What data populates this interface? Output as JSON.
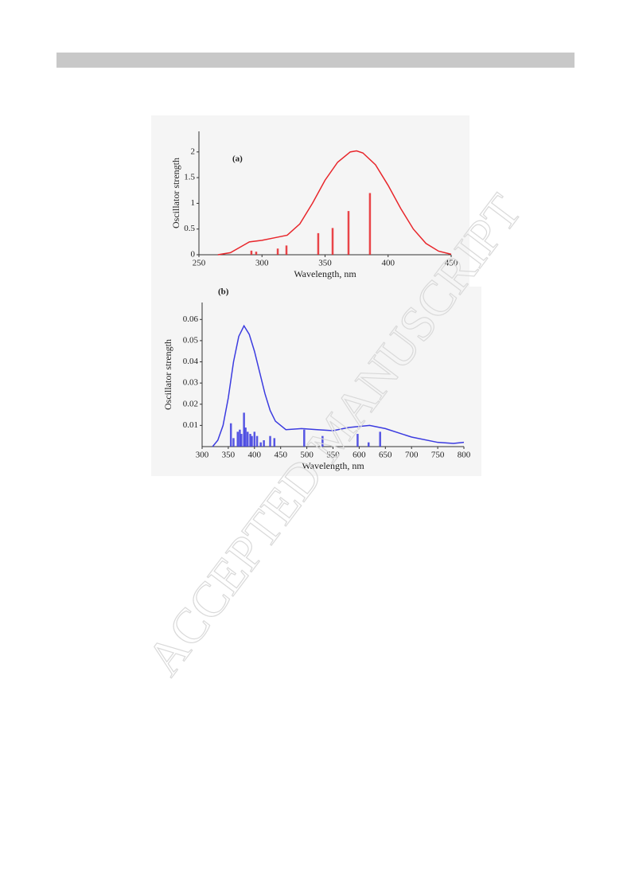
{
  "watermark": "ACCEPTED MANUSCRIPT",
  "chart_data": [
    {
      "type": "line",
      "annotation": "(a)",
      "x_label": "Wavelength, nm",
      "y_label": "Oscillator strength",
      "color": "#e8262b",
      "xlim": [
        250,
        450
      ],
      "xticks": [
        250,
        300,
        350,
        400,
        450
      ],
      "ylim": [
        0,
        2.4
      ],
      "yticks": [
        0,
        0.5,
        1,
        1.5,
        2
      ],
      "curve": {
        "x": [
          265,
          275,
          285,
          290,
          300,
          310,
          320,
          330,
          340,
          350,
          360,
          370,
          375,
          380,
          390,
          400,
          410,
          420,
          430,
          440,
          450
        ],
        "values": [
          0,
          0.04,
          0.18,
          0.25,
          0.28,
          0.33,
          0.38,
          0.6,
          1.0,
          1.45,
          1.8,
          2.0,
          2.02,
          1.98,
          1.75,
          1.35,
          0.9,
          0.5,
          0.22,
          0.07,
          0.01
        ]
      },
      "sticks": {
        "x": [
          291.6,
          295.4,
          312.5,
          319.4,
          344.6,
          356,
          368.6,
          385.6
        ],
        "values": [
          0.08,
          0.06,
          0.12,
          0.18,
          0.42,
          0.52,
          0.85,
          1.2
        ]
      }
    },
    {
      "type": "line",
      "annotation": "(b)",
      "x_label": "Wavelength, nm",
      "y_label": "Oscillator strength",
      "color": "#3b3be0",
      "xlim": [
        300,
        800
      ],
      "xticks": [
        300,
        350,
        400,
        450,
        500,
        550,
        600,
        650,
        700,
        750,
        800
      ],
      "ylim": [
        0,
        0.068
      ],
      "yticks": [
        0.01,
        0.02,
        0.03,
        0.04,
        0.05,
        0.06
      ],
      "curve": {
        "x": [
          320,
          330,
          340,
          350,
          360,
          370,
          380,
          390,
          400,
          410,
          420,
          430,
          440,
          460,
          490,
          520,
          550,
          580,
          620,
          650,
          700,
          750,
          780,
          800
        ],
        "values": [
          0,
          0.003,
          0.01,
          0.023,
          0.04,
          0.052,
          0.057,
          0.053,
          0.045,
          0.035,
          0.025,
          0.017,
          0.012,
          0.008,
          0.0085,
          0.008,
          0.0075,
          0.009,
          0.01,
          0.0085,
          0.0045,
          0.002,
          0.0015,
          0.002
        ]
      },
      "sticks": {
        "x": [
          355,
          360,
          368,
          372,
          375,
          380,
          383,
          387,
          392,
          395,
          400,
          405,
          412,
          418,
          430,
          438,
          495,
          530,
          597,
          618,
          640
        ],
        "values": [
          0.011,
          0.004,
          0.007,
          0.008,
          0.006,
          0.016,
          0.009,
          0.007,
          0.006,
          0.005,
          0.007,
          0.005,
          0.002,
          0.003,
          0.005,
          0.004,
          0.008,
          0.005,
          0.006,
          0.002,
          0.007
        ]
      }
    }
  ]
}
